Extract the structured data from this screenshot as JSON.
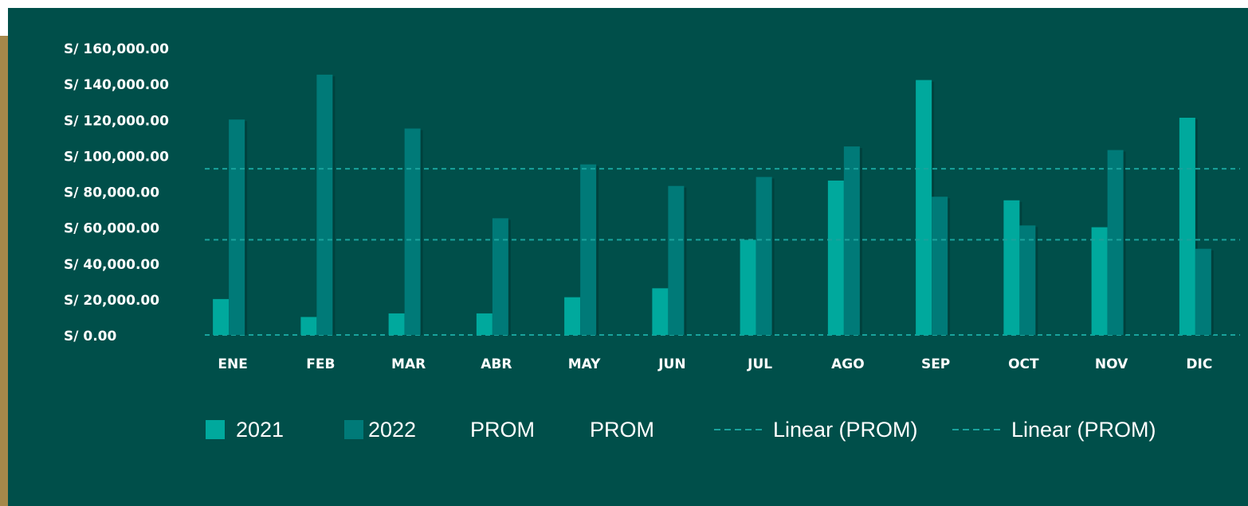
{
  "chart_data": {
    "type": "bar",
    "categories": [
      "ENE",
      "FEB",
      "MAR",
      "ABR",
      "MAY",
      "JUN",
      "JUL",
      "AGO",
      "SEP",
      "OCT",
      "NOV",
      "DIC"
    ],
    "series": [
      {
        "name": "2021",
        "color": "#00a99d",
        "values": [
          20000,
          10000,
          12000,
          12000,
          21000,
          26000,
          53000,
          86000,
          142000,
          75000,
          60000,
          121000
        ]
      },
      {
        "name": "2022",
        "color": "#007a78",
        "values": [
          120000,
          145000,
          115000,
          65000,
          95000,
          83000,
          88000,
          105000,
          77000,
          61000,
          103000,
          48000
        ]
      },
      {
        "name": "PROM",
        "color": "#004f4a",
        "values": [
          null,
          null,
          null,
          null,
          null,
          null,
          null,
          null,
          null,
          null,
          null,
          null
        ]
      },
      {
        "name": "PROM",
        "color": "#004f4a",
        "values": [
          null,
          null,
          null,
          null,
          null,
          null,
          null,
          null,
          null,
          null,
          null,
          null
        ]
      },
      {
        "name": "Linear (PROM)",
        "type": "trend",
        "color": "#19a39d",
        "values": [
          92600,
          92600,
          92600,
          92600,
          92600,
          92600,
          92600,
          92600,
          92600,
          92600,
          92600,
          92600
        ]
      },
      {
        "name": "Linear (PROM)",
        "type": "trend",
        "color": "#19a39d",
        "values": [
          53000,
          53000,
          53000,
          53000,
          53000,
          53000,
          53000,
          53000,
          53000,
          53000,
          53000,
          53000
        ]
      }
    ],
    "ylim": [
      0,
      160000
    ],
    "yticks": [
      {
        "value": 0,
        "label": "S/ 0.00"
      },
      {
        "value": 20000,
        "label": "S/ 20,000.00"
      },
      {
        "value": 40000,
        "label": "S/ 40,000.00"
      },
      {
        "value": 60000,
        "label": "S/ 60,000.00"
      },
      {
        "value": 80000,
        "label": "S/ 80,000.00"
      },
      {
        "value": 100000,
        "label": "S/ 100,000.00"
      },
      {
        "value": 120000,
        "label": "S/ 120,000.00"
      },
      {
        "value": 140000,
        "label": "S/ 140,000.00"
      },
      {
        "value": 160000,
        "label": "S/ 160,000.00"
      }
    ],
    "grid": false
  }
}
